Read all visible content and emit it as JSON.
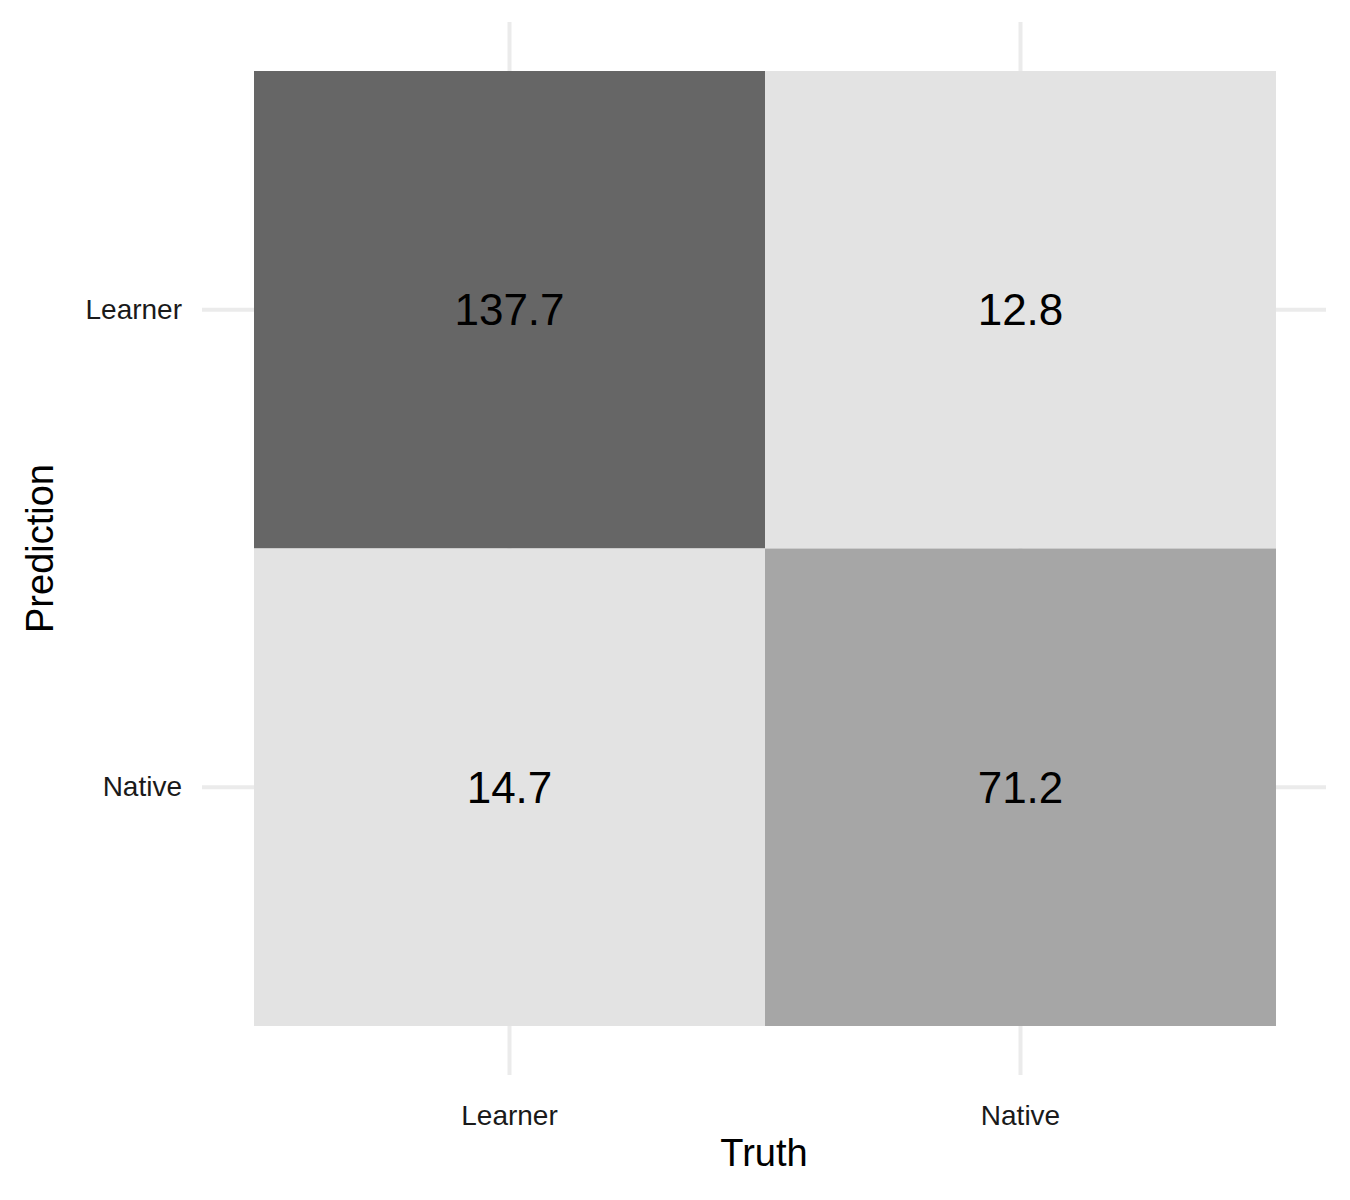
{
  "chart_data": {
    "type": "heatmap",
    "x_label": "Truth",
    "y_label": "Prediction",
    "categories": [
      "Learner",
      "Native"
    ],
    "y_categories": [
      "Learner",
      "Native"
    ],
    "cells": [
      [
        137.7,
        12.8
      ],
      [
        14.7,
        71.2
      ]
    ],
    "colors": [
      [
        "#666666",
        "#e3e3e3"
      ],
      [
        "#e3e3e3",
        "#a6a6a6"
      ]
    ],
    "data_labels": true,
    "grid": true
  }
}
